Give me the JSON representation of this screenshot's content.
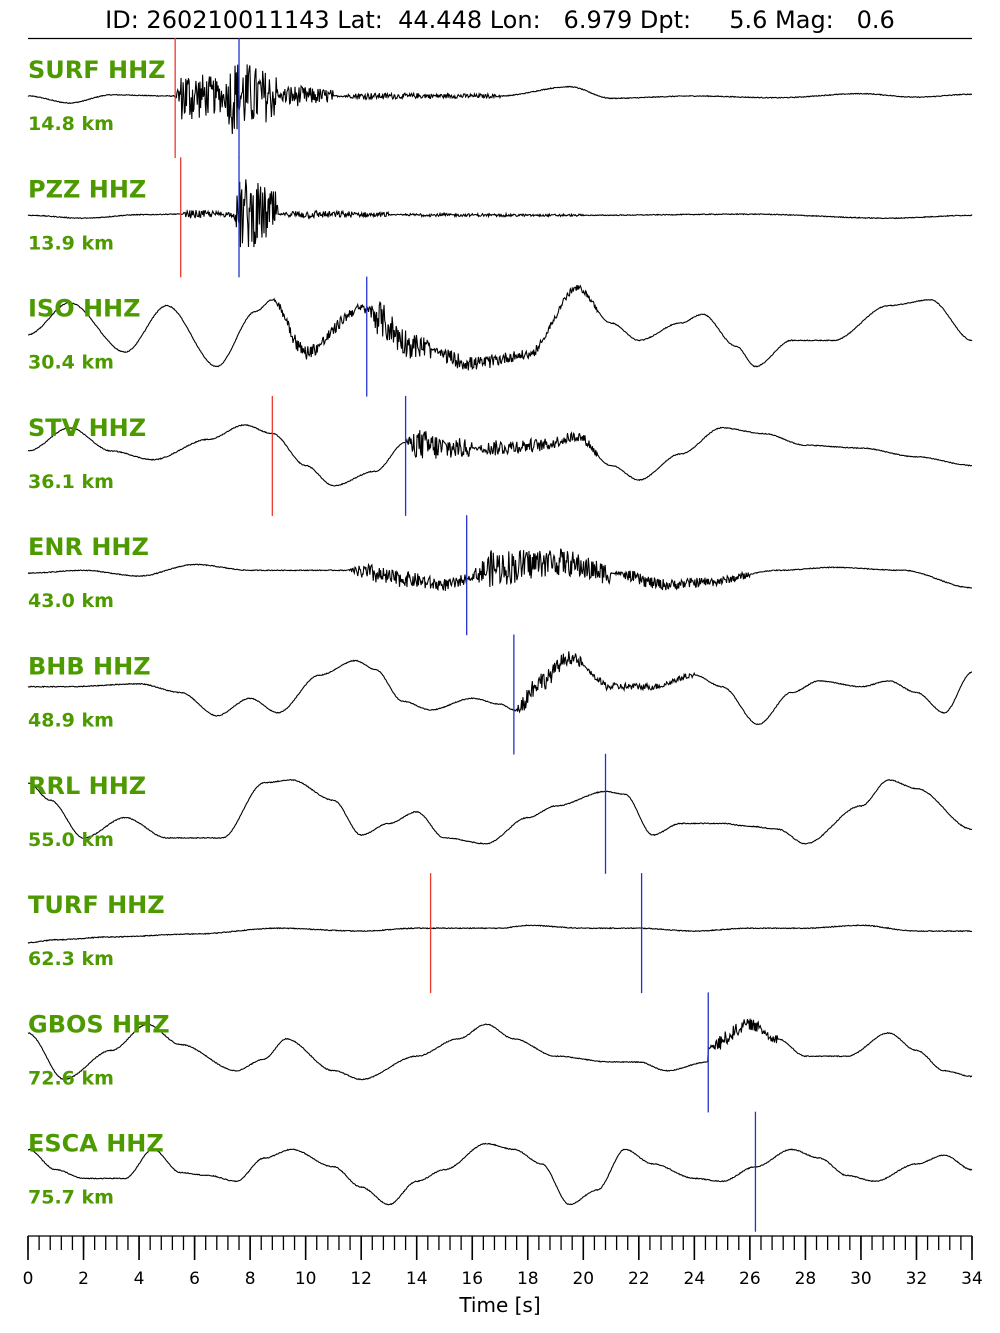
{
  "header": {
    "text": "ID: 260210011143 Lat:  44.448 Lon:   6.979 Dpt:     5.6 Mag:   0.6"
  },
  "colors": {
    "label": "#4d9a00",
    "trace": "#000000",
    "p_pick": "#e8392b",
    "s_pick": "#2233cc"
  },
  "chart_data": {
    "type": "line",
    "title": "",
    "xlabel": "Time [s]",
    "ylabel": "",
    "xlim": [
      0,
      34
    ],
    "x_ticks": [
      0,
      2,
      4,
      6,
      8,
      10,
      12,
      14,
      16,
      18,
      20,
      22,
      24,
      26,
      28,
      30,
      32,
      34
    ],
    "x_tick_labels": [
      "0",
      "2",
      "4",
      "6",
      "8",
      "10",
      "12",
      "14",
      "16",
      "18",
      "20",
      "22",
      "24",
      "26",
      "28",
      "30",
      "32",
      "34"
    ],
    "minor_tick_step": 0.4,
    "grid": false,
    "series": [
      {
        "name": "SURF HHZ",
        "distance": "14.8 km",
        "p_pick": 5.3,
        "s_pick": 7.6,
        "waveform": [
          [
            0,
            0
          ],
          [
            1.5,
            -0.12
          ],
          [
            3,
            0.02
          ],
          [
            5.2,
            0
          ],
          {
            "burst": [
              5.3,
              7.0,
              0.55
            ]
          },
          {
            "burst": [
              7.0,
              9.0,
              0.75
            ]
          },
          {
            "burst": [
              9.0,
              11,
              0.22
            ]
          },
          {
            "burst": [
              11,
              17,
              0.06
            ]
          },
          [
            17,
            0
          ],
          [
            19.5,
            0.16
          ],
          [
            21,
            -0.04
          ],
          [
            24,
            0
          ],
          [
            27,
            -0.03
          ],
          [
            30,
            0.04
          ],
          [
            32,
            -0.02
          ],
          [
            34,
            0.03
          ]
        ]
      },
      {
        "name": "PZZ HHZ",
        "distance": "13.9 km",
        "p_pick": 5.5,
        "s_pick": 7.6,
        "waveform": [
          [
            0,
            0
          ],
          [
            2,
            -0.05
          ],
          [
            4,
            0.01
          ],
          [
            5.4,
            0.02
          ],
          {
            "burst": [
              5.5,
              7.4,
              0.08
            ]
          },
          {
            "burst": [
              7.4,
              9,
              0.75
            ]
          },
          {
            "burst": [
              9,
              13,
              0.08
            ]
          },
          {
            "burst": [
              13,
              20,
              0.03
            ]
          },
          [
            20,
            0
          ],
          [
            26,
            0.02
          ],
          [
            31,
            -0.05
          ],
          [
            34,
            0
          ]
        ]
      },
      {
        "name": "ISO HHZ",
        "distance": "30.4 km",
        "p_pick": null,
        "s_pick": 12.2,
        "waveform": [
          [
            0,
            0
          ],
          [
            1.5,
            0.55
          ],
          [
            3.5,
            -0.3
          ],
          [
            5,
            0.5
          ],
          [
            6.8,
            -0.55
          ],
          [
            8.2,
            0.4
          ],
          [
            8.8,
            0.6
          ],
          {
            "burst": [
              8.8,
              12.2,
              0.15
            ]
          },
          {
            "burst": [
              12.2,
              14.5,
              0.35
            ]
          },
          {
            "burst": [
              14.5,
              18.5,
              0.15
            ]
          },
          {
            "burst": [
              18.5,
              20.5,
              0.08
            ]
          },
          [
            10,
            -0.3
          ],
          [
            12,
            0.45
          ],
          [
            14,
            -0.2
          ],
          [
            16,
            -0.5
          ],
          [
            18,
            -0.35
          ],
          [
            19.8,
            0.8
          ],
          [
            21,
            0.2
          ],
          [
            22,
            -0.1
          ],
          [
            23.5,
            0.2
          ],
          [
            24.3,
            0.35
          ],
          [
            25.5,
            -0.2
          ],
          [
            26.2,
            -0.55
          ],
          [
            27.5,
            -0.1
          ],
          [
            29,
            -0.1
          ],
          [
            31,
            0.5
          ],
          [
            32.5,
            0.6
          ],
          [
            34,
            -0.1
          ]
        ]
      },
      {
        "name": "STV HHZ",
        "distance": "36.1 km",
        "p_pick": 8.8,
        "s_pick": 13.6,
        "waveform": [
          [
            0,
            0.05
          ],
          [
            1.5,
            0.45
          ],
          [
            3,
            0.05
          ],
          [
            4.5,
            -0.1
          ],
          [
            6.5,
            0.25
          ],
          [
            7.8,
            0.5
          ],
          [
            8.8,
            0.35
          ],
          [
            10,
            -0.2
          ],
          [
            11,
            -0.55
          ],
          [
            12.5,
            -0.3
          ],
          [
            13.6,
            0.2
          ],
          {
            "burst": [
              13.6,
              16,
              0.3
            ]
          },
          {
            "burst": [
              16,
              20.5,
              0.15
            ]
          },
          [
            15,
            0.1
          ],
          [
            16.5,
            0.1
          ],
          [
            18.5,
            0.15
          ],
          [
            19.8,
            0.3
          ],
          [
            21,
            -0.2
          ],
          [
            22,
            -0.45
          ],
          [
            23.5,
            0
          ],
          [
            25,
            0.45
          ],
          [
            26.5,
            0.35
          ],
          [
            28,
            0.15
          ],
          [
            30,
            0.1
          ],
          [
            32,
            -0.05
          ],
          [
            34,
            -0.2
          ]
        ]
      },
      {
        "name": "ENR HHZ",
        "distance": "43.0 km",
        "p_pick": null,
        "s_pick": 15.8,
        "waveform": [
          [
            0,
            0
          ],
          [
            2,
            0.05
          ],
          [
            4,
            -0.05
          ],
          [
            6,
            0.15
          ],
          [
            8,
            0.05
          ],
          [
            10,
            0.05
          ],
          [
            11.5,
            0.05
          ],
          {
            "burst": [
              11.5,
              15.8,
              0.18
            ]
          },
          {
            "burst": [
              15.8,
              21,
              0.35
            ]
          },
          {
            "burst": [
              21,
              26,
              0.12
            ]
          },
          [
            13.5,
            -0.1
          ],
          [
            15,
            -0.2
          ],
          [
            17,
            0.1
          ],
          [
            19,
            0.2
          ],
          [
            21,
            0
          ],
          [
            23,
            -0.2
          ],
          [
            24.5,
            -0.15
          ],
          [
            27,
            0.05
          ],
          [
            29,
            0.1
          ],
          [
            31.5,
            0.05
          ],
          [
            34,
            -0.25
          ]
        ]
      },
      {
        "name": "BHB HHZ",
        "distance": "48.9 km",
        "p_pick": null,
        "s_pick": 17.5,
        "waveform": [
          [
            0,
            0.1
          ],
          [
            1.5,
            0.1
          ],
          [
            4,
            0.15
          ],
          [
            5.5,
            0
          ],
          [
            6.8,
            -0.4
          ],
          [
            8,
            -0.1
          ],
          [
            9,
            -0.35
          ],
          [
            10.5,
            0.3
          ],
          [
            11.8,
            0.55
          ],
          [
            12.5,
            0.4
          ],
          [
            13.5,
            -0.15
          ],
          [
            14.5,
            -0.3
          ],
          [
            16,
            -0.1
          ],
          [
            17,
            -0.2
          ],
          [
            17.5,
            -0.3
          ],
          {
            "burst": [
              17.5,
              20,
              0.2
            ]
          },
          {
            "burst": [
              20,
              24,
              0.08
            ]
          },
          [
            18.5,
            0.2
          ],
          [
            19.5,
            0.6
          ],
          [
            21,
            0.1
          ],
          [
            22.5,
            0.1
          ],
          [
            24,
            0.3
          ],
          [
            25,
            0.1
          ],
          [
            26.3,
            -0.55
          ],
          [
            27.5,
            0
          ],
          [
            28.5,
            0.2
          ],
          [
            30,
            0.1
          ],
          [
            31,
            0.2
          ],
          [
            32,
            0
          ],
          [
            33,
            -0.35
          ],
          [
            34,
            0.35
          ]
        ]
      },
      {
        "name": "RRL HHZ",
        "distance": "55.0 km",
        "p_pick": null,
        "s_pick": 20.8,
        "waveform": [
          [
            0,
            0.5
          ],
          [
            0.8,
            0.2
          ],
          [
            2,
            -0.45
          ],
          [
            3.5,
            -0.1
          ],
          [
            5,
            -0.45
          ],
          [
            7,
            -0.45
          ],
          [
            8.5,
            0.5
          ],
          [
            9.5,
            0.55
          ],
          [
            11,
            0.2
          ],
          [
            12,
            -0.4
          ],
          [
            13,
            -0.2
          ],
          [
            14,
            0
          ],
          [
            15,
            -0.45
          ],
          [
            16.5,
            -0.55
          ],
          [
            18,
            -0.1
          ],
          [
            19,
            0.1
          ],
          [
            20.8,
            0.35
          ],
          [
            21.5,
            0.3
          ],
          [
            22.5,
            -0.4
          ],
          [
            23.5,
            -0.2
          ],
          [
            25,
            -0.2
          ],
          [
            26,
            -0.25
          ],
          [
            27,
            -0.3
          ],
          [
            28,
            -0.55
          ],
          [
            30,
            0.1
          ],
          [
            31,
            0.55
          ],
          [
            32,
            0.4
          ],
          [
            34,
            -0.3
          ]
        ]
      },
      {
        "name": "TURF HHZ",
        "distance": "62.3 km",
        "p_pick": 14.5,
        "s_pick": 22.1,
        "waveform": [
          [
            0,
            -0.2
          ],
          [
            1,
            -0.15
          ],
          [
            3,
            -0.1
          ],
          [
            6,
            -0.05
          ],
          [
            9,
            0.05
          ],
          [
            12,
            0
          ],
          [
            14,
            0.05
          ],
          [
            17,
            0.05
          ],
          [
            18,
            0.1
          ],
          [
            20,
            0.05
          ],
          [
            22,
            0.05
          ],
          [
            24,
            0
          ],
          [
            26,
            0.05
          ],
          [
            28,
            0.05
          ],
          [
            30,
            0.1
          ],
          [
            32,
            0
          ],
          [
            34,
            0
          ]
        ]
      },
      {
        "name": "GBOS HHZ",
        "distance": "72.6 km",
        "p_pick": null,
        "s_pick": 24.5,
        "waveform": [
          [
            0,
            0.3
          ],
          [
            1.3,
            -0.5
          ],
          [
            3,
            0
          ],
          [
            4.3,
            0.45
          ],
          [
            5.5,
            0.1
          ],
          [
            7.5,
            -0.35
          ],
          [
            8.5,
            -0.15
          ],
          [
            9.3,
            0.2
          ],
          [
            11,
            -0.35
          ],
          [
            12,
            -0.5
          ],
          [
            14,
            -0.1
          ],
          [
            15.5,
            0.2
          ],
          [
            16.5,
            0.45
          ],
          [
            17.5,
            0.2
          ],
          [
            19,
            -0.1
          ],
          [
            21,
            -0.2
          ],
          [
            22,
            -0.2
          ],
          [
            23,
            -0.35
          ],
          [
            24.5,
            -0.2
          ],
          [
            24.5,
            0.05
          ],
          {
            "burst": [
              24.5,
              27,
              0.15
            ]
          },
          [
            26,
            0.45
          ],
          [
            27,
            0.2
          ],
          [
            28,
            -0.1
          ],
          [
            29.5,
            -0.1
          ],
          [
            31,
            0.3
          ],
          [
            32,
            0
          ],
          [
            33,
            -0.35
          ],
          [
            34,
            -0.45
          ]
        ]
      },
      {
        "name": "ESCA HHZ",
        "distance": "75.7 km",
        "p_pick": null,
        "s_pick": 26.2,
        "waveform": [
          [
            0,
            0.35
          ],
          [
            1,
            0
          ],
          [
            2,
            -0.15
          ],
          [
            3.5,
            -0.15
          ],
          [
            4.5,
            0.35
          ],
          [
            5.5,
            -0.05
          ],
          [
            6.5,
            -0.1
          ],
          [
            7.5,
            -0.2
          ],
          [
            8.5,
            0.2
          ],
          [
            9.5,
            0.35
          ],
          [
            11,
            0.05
          ],
          [
            12,
            -0.3
          ],
          [
            13,
            -0.6
          ],
          [
            14,
            -0.2
          ],
          [
            15,
            0
          ],
          [
            16.5,
            0.45
          ],
          [
            17.5,
            0.35
          ],
          [
            18.5,
            0.1
          ],
          [
            19.5,
            -0.6
          ],
          [
            20.5,
            -0.35
          ],
          [
            21.5,
            0.35
          ],
          [
            22.5,
            0.1
          ],
          [
            24,
            -0.15
          ],
          [
            25,
            -0.2
          ],
          [
            26.2,
            0.05
          ],
          [
            27.5,
            0.35
          ],
          [
            28.5,
            0.2
          ],
          [
            29.5,
            -0.1
          ],
          [
            30.5,
            -0.2
          ],
          [
            32,
            0.1
          ],
          [
            33,
            0.25
          ],
          [
            34,
            0
          ]
        ]
      }
    ]
  }
}
